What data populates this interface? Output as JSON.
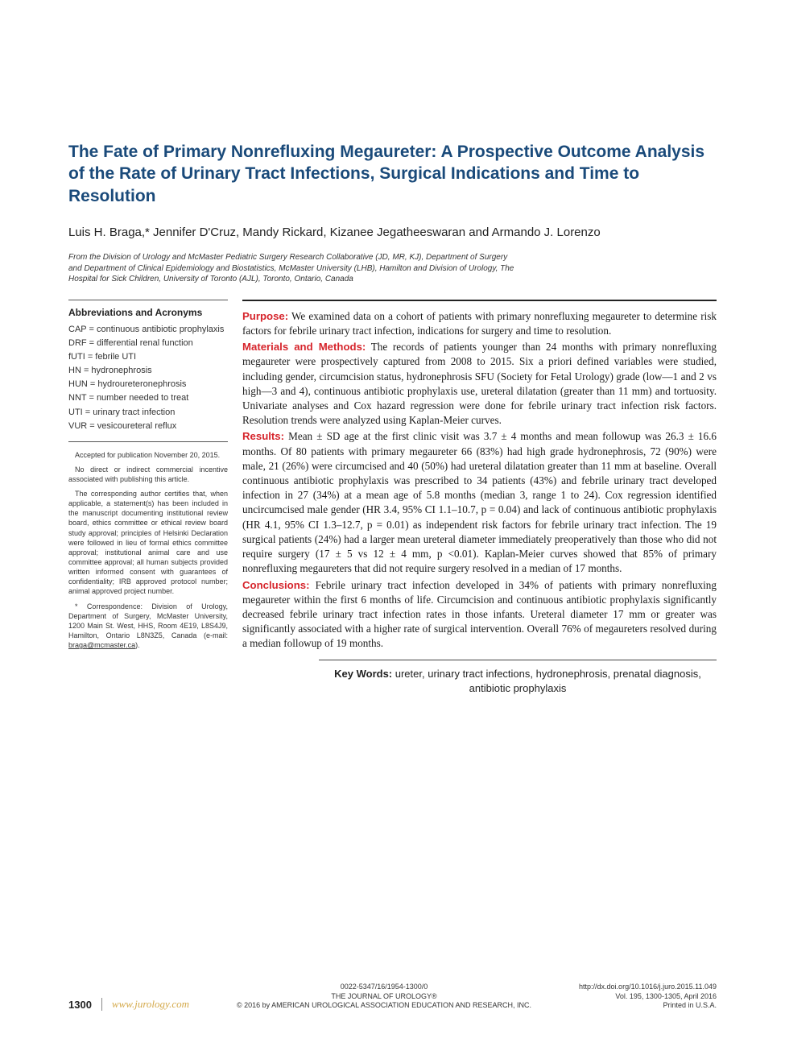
{
  "title": "The Fate of Primary Nonrefluxing Megaureter: A Prospective Outcome Analysis of the Rate of Urinary Tract Infections, Surgical Indications and Time to Resolution",
  "authors": "Luis H. Braga,* Jennifer D'Cruz, Mandy Rickard, Kizanee Jegatheeswaran and Armando J. Lorenzo",
  "affiliation": "From the Division of Urology and McMaster Pediatric Surgery Research Collaborative (JD, MR, KJ), Department of Surgery and Department of Clinical Epidemiology and Biostatistics, McMaster University (LHB), Hamilton and Division of Urology, The Hospital for Sick Children, University of Toronto (AJL), Toronto, Ontario, Canada",
  "colors": {
    "title": "#1a4a7a",
    "section_label": "#d6252c",
    "journal_url": "#d4a94a",
    "text": "#1a1a1a",
    "background": "#ffffff"
  },
  "abbrev": {
    "heading": "Abbreviations and Acronyms",
    "items": [
      "CAP = continuous antibiotic prophylaxis",
      "DRF = differential renal function",
      "fUTI = febrile UTI",
      "HN = hydronephrosis",
      "HUN = hydroureteronephrosis",
      "NNT = number needed to treat",
      "UTI = urinary tract infection",
      "VUR = vesicoureteral reflux"
    ]
  },
  "sidebar_notes": {
    "n1": "Accepted for publication November 20, 2015.",
    "n2": "No direct or indirect commercial incentive associated with publishing this article.",
    "n3": "The corresponding author certifies that, when applicable, a statement(s) has been included in the manuscript documenting institutional review board, ethics committee or ethical review board study approval; principles of Helsinki Declaration were followed in lieu of formal ethics committee approval; institutional animal care and use committee approval; all human subjects provided written informed consent with guarantees of confidentiality; IRB approved protocol number; animal approved project number.",
    "n4_prefix": "* Correspondence: Division of Urology, Department of Surgery, McMaster University, 1200 Main St. West, HHS, Room 4E19, L8S4J9, Hamilton, Ontario L8N3Z5, Canada (e-mail: ",
    "n4_email": "braga@mcmaster.ca",
    "n4_suffix": ")."
  },
  "abstract": {
    "purpose": {
      "label": "Purpose:",
      "text": " We examined data on a cohort of patients with primary nonrefluxing megaureter to determine risk factors for febrile urinary tract infection, indications for surgery and time to resolution."
    },
    "methods": {
      "label": "Materials and Methods:",
      "text": " The records of patients younger than 24 months with primary nonrefluxing megaureter were prospectively captured from 2008 to 2015. Six a priori defined variables were studied, including gender, circumcision status, hydronephrosis SFU (Society for Fetal Urology) grade (low—1 and 2 vs high—3 and 4), continuous antibiotic prophylaxis use, ureteral dilatation (greater than 11 mm) and tortuosity. Univariate analyses and Cox hazard regression were done for febrile urinary tract infection risk factors. Resolution trends were analyzed using Kaplan-Meier curves."
    },
    "results": {
      "label": "Results:",
      "text": " Mean ± SD age at the first clinic visit was 3.7 ± 4 months and mean followup was 26.3 ± 16.6 months. Of 80 patients with primary megaureter 66 (83%) had high grade hydronephrosis, 72 (90%) were male, 21 (26%) were circumcised and 40 (50%) had ureteral dilatation greater than 11 mm at baseline. Overall continuous antibiotic prophylaxis was prescribed to 34 patients (43%) and febrile urinary tract developed infection in 27 (34%) at a mean age of 5.8 months (median 3, range 1 to 24). Cox regression identified uncircumcised male gender (HR 3.4, 95% CI 1.1–10.7, p = 0.04) and lack of continuous antibiotic prophylaxis (HR 4.1, 95% CI 1.3–12.7, p = 0.01) as independent risk factors for febrile urinary tract infection. The 19 surgical patients (24%) had a larger mean ureteral diameter immediately preoperatively than those who did not require surgery (17 ± 5 vs 12 ± 4 mm, p <0.01). Kaplan-Meier curves showed that 85% of primary nonrefluxing megaureters that did not require surgery resolved in a median of 17 months."
    },
    "conclusions": {
      "label": "Conclusions:",
      "text": " Febrile urinary tract infection developed in 34% of patients with primary nonrefluxing megaureter within the first 6 months of life. Circumcision and continuous antibiotic prophylaxis significantly decreased febrile urinary tract infection rates in those infants. Ureteral diameter 17 mm or greater was significantly associated with a higher rate of surgical intervention. Overall 76% of megaureters resolved during a median followup of 19 months."
    }
  },
  "keywords": {
    "label": "Key Words:",
    "text": " ureter, urinary tract infections, hydronephrosis, prenatal diagnosis, antibiotic prophylaxis"
  },
  "footer": {
    "page": "1300",
    "url": "www.jurology.com",
    "center1": "0022-5347/16/1954-1300/0",
    "center2": "THE JOURNAL OF UROLOGY®",
    "center3": "© 2016 by AMERICAN UROLOGICAL ASSOCIATION EDUCATION AND RESEARCH, INC.",
    "right1": "http://dx.doi.org/10.1016/j.juro.2015.11.049",
    "right2": "Vol. 195, 1300-1305, April 2016",
    "right3": "Printed in U.S.A."
  }
}
